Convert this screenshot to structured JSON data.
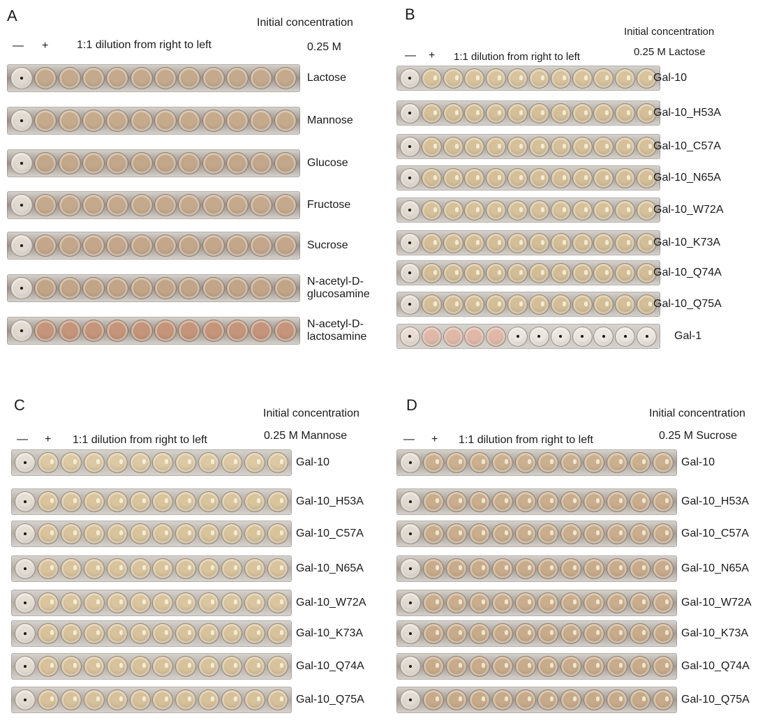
{
  "panels": [
    {
      "id": "A",
      "letter": "A",
      "minus": "—",
      "plus": "+",
      "dilution": "1:1 dilution from right to left",
      "initial": "Initial concentration",
      "conc": "0.25 M",
      "rows": [
        {
          "label": "Lactose",
          "color": "#c4a98c",
          "wall": "#9a9088"
        },
        {
          "label": "Mannose",
          "color": "#c6aa8c",
          "wall": "#9a9088"
        },
        {
          "label": "Glucose",
          "color": "#c3a78b",
          "wall": "#9a9088"
        },
        {
          "label": "Fructose",
          "color": "#c5a98c",
          "wall": "#9a9088"
        },
        {
          "label": "Sucrose",
          "color": "#c4a68a",
          "wall": "#9a9088"
        },
        {
          "label": "N-acetyl-D-\nglucosamine",
          "color": "#c2a488",
          "wall": "#9a9088"
        },
        {
          "label": "N-acetyl-D-\nlactosamine",
          "color": "#c4957a",
          "wall": "#9a9088"
        }
      ]
    },
    {
      "id": "B",
      "letter": "B",
      "minus": "—",
      "plus": "+",
      "dilution": "1:1 dilution from right to left",
      "initial": "Initial concentration",
      "conc": "0.25 M  Lactose",
      "rows": [
        {
          "label": "Gal-10",
          "color": "#d8c39c",
          "wall": "#b0aaa3"
        },
        {
          "label": "Gal-10_H53A",
          "color": "#d4bf98",
          "wall": "#a9a39c"
        },
        {
          "label": "Gal-10_C57A",
          "color": "#d6c099",
          "wall": "#aaa49d"
        },
        {
          "label": "Gal-10_N65A",
          "color": "#d5bf98",
          "wall": "#aaa49d"
        },
        {
          "label": "Gal-10_W72A",
          "color": "#d6c19a",
          "wall": "#aaa49d"
        },
        {
          "label": "Gal-10_K73A",
          "color": "#d4be97",
          "wall": "#a8a29b"
        },
        {
          "label": "Gal-10_Q74A",
          "color": "#d3bd96",
          "wall": "#a8a29b"
        },
        {
          "label": "Gal-10_Q75A",
          "color": "#d4be97",
          "wall": "#a8a29b"
        },
        {
          "label": "Gal-1",
          "color": "#e2d6cc",
          "wall": "#c9c4c0"
        }
      ]
    },
    {
      "id": "C",
      "letter": "C",
      "minus": "—",
      "plus": "+",
      "dilution": "1:1 dilution from right to left",
      "initial": "Initial concentration",
      "conc": "0.25 M  Mannose",
      "rows": [
        {
          "label": "Gal-10",
          "color": "#dcc8a2",
          "wall": "#b8b2ab"
        },
        {
          "label": "Gal-10_H53A",
          "color": "#d9c49c",
          "wall": "#b3ada6"
        },
        {
          "label": "Gal-10_C57A",
          "color": "#d8c39b",
          "wall": "#b3ada6"
        },
        {
          "label": "Gal-10_N65A",
          "color": "#d9c39c",
          "wall": "#b3ada6"
        },
        {
          "label": "Gal-10_W72A",
          "color": "#dac59e",
          "wall": "#b4aea7"
        },
        {
          "label": "Gal-10_K73A",
          "color": "#d8c29b",
          "wall": "#b2aca5"
        },
        {
          "label": "Gal-10_Q74A",
          "color": "#d8c29b",
          "wall": "#b2aca5"
        },
        {
          "label": "Gal-10_Q75A",
          "color": "#d7c19a",
          "wall": "#b1aba4"
        }
      ]
    },
    {
      "id": "D",
      "letter": "D",
      "minus": "—",
      "plus": "+",
      "dilution": "1:1 dilution from right to left",
      "initial": "Initial concentration",
      "conc": "0.25 M Sucrose",
      "rows": [
        {
          "label": "Gal-10",
          "color": "#cbb08f",
          "wall": "#a59d95"
        },
        {
          "label": "Gal-10_H53A",
          "color": "#c9ad8c",
          "wall": "#a39b93"
        },
        {
          "label": "Gal-10_C57A",
          "color": "#c9ad8c",
          "wall": "#a39b93"
        },
        {
          "label": "Gal-10_N65A",
          "color": "#c8ab8a",
          "wall": "#a29a92"
        },
        {
          "label": "Gal-10_W72A",
          "color": "#c9ad8c",
          "wall": "#a39b93"
        },
        {
          "label": "Gal-10_K73A",
          "color": "#c8ab8a",
          "wall": "#a29a92"
        },
        {
          "label": "Gal-10_Q74A",
          "color": "#c8ab8a",
          "wall": "#a29a92"
        },
        {
          "label": "Gal-10_Q75A",
          "color": "#c7aa89",
          "wall": "#a19991"
        }
      ]
    }
  ],
  "colors": {
    "gal1_control": "#e9dcd2",
    "gal1_pink": "#e0b8a8",
    "gal1_clear": "#ece6e0"
  }
}
